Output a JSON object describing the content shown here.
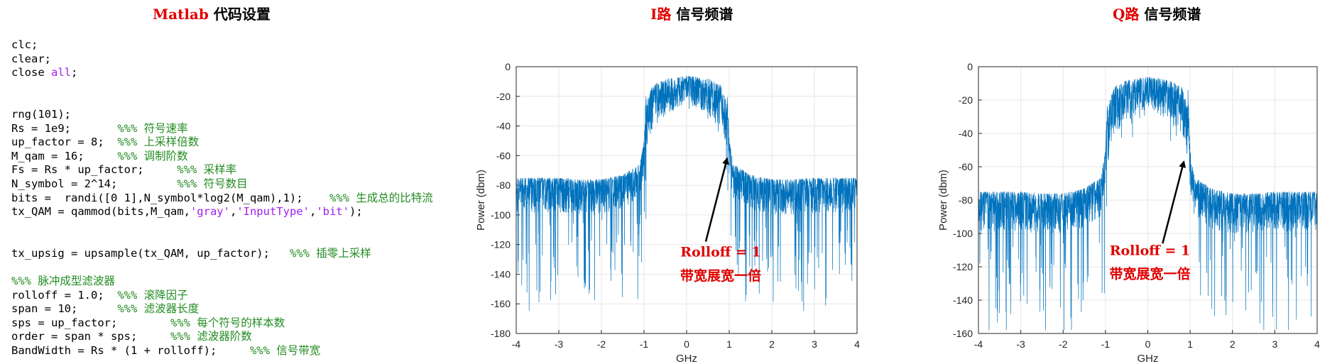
{
  "panels": {
    "code_title_prefix": "Matlab",
    "code_title_rest": " 代码设置",
    "i_title_prefix": "I路",
    "i_title_rest": " 信号频谱",
    "q_title_prefix": "Q路",
    "q_title_rest": " 信号频谱"
  },
  "code": {
    "lines": [
      [
        {
          "t": "clc;",
          "c": ""
        }
      ],
      [
        {
          "t": "clear;",
          "c": ""
        }
      ],
      [
        {
          "t": "close ",
          "c": ""
        },
        {
          "t": "all",
          "c": "kw"
        },
        {
          "t": ";",
          "c": ""
        }
      ],
      [],
      [],
      [
        {
          "t": "rng(101);",
          "c": ""
        }
      ],
      [
        {
          "t": "Rs = 1e9;       ",
          "c": ""
        },
        {
          "t": "%%% 符号速率",
          "c": "cm"
        }
      ],
      [
        {
          "t": "up_factor = 8;  ",
          "c": ""
        },
        {
          "t": "%%% 上采样倍数",
          "c": "cm"
        }
      ],
      [
        {
          "t": "M_qam = 16;     ",
          "c": ""
        },
        {
          "t": "%%% 调制阶数",
          "c": "cm"
        }
      ],
      [
        {
          "t": "Fs = Rs * up_factor;     ",
          "c": ""
        },
        {
          "t": "%%% 采样率",
          "c": "cm"
        }
      ],
      [
        {
          "t": "N_symbol = 2^14;         ",
          "c": ""
        },
        {
          "t": "%%% 符号数目",
          "c": "cm"
        }
      ],
      [
        {
          "t": "bits =  randi([0 1],N_symbol*log2(M_qam),1);    ",
          "c": ""
        },
        {
          "t": "%%% 生成总的比特流",
          "c": "cm"
        }
      ],
      [
        {
          "t": "tx_QAM = qammod(bits,M_qam,",
          "c": ""
        },
        {
          "t": "'gray'",
          "c": "str"
        },
        {
          "t": ",",
          "c": ""
        },
        {
          "t": "'InputType'",
          "c": "str"
        },
        {
          "t": ",",
          "c": ""
        },
        {
          "t": "'bit'",
          "c": "str"
        },
        {
          "t": ");",
          "c": ""
        }
      ],
      [],
      [],
      [
        {
          "t": "tx_upsig = upsample(tx_QAM, up_factor);   ",
          "c": ""
        },
        {
          "t": "%%% 插零上采样",
          "c": "cm"
        }
      ],
      [],
      [
        {
          "t": "%%% 脉冲成型滤波器",
          "c": "cm"
        }
      ],
      [
        {
          "t": "rolloff = 1.0;  ",
          "c": ""
        },
        {
          "t": "%%% 滚降因子",
          "c": "cm"
        }
      ],
      [
        {
          "t": "span = 10;      ",
          "c": ""
        },
        {
          "t": "%%% 滤波器长度",
          "c": "cm"
        }
      ],
      [
        {
          "t": "sps = up_factor;        ",
          "c": ""
        },
        {
          "t": "%%% 每个符号的样本数",
          "c": "cm"
        }
      ],
      [
        {
          "t": "order = span * sps;     ",
          "c": ""
        },
        {
          "t": "%%% 滤波器阶数",
          "c": "cm"
        }
      ],
      [
        {
          "t": "BandWidth = Rs * (1 + rolloff);     ",
          "c": ""
        },
        {
          "t": "%%% 信号带宽",
          "c": "cm"
        }
      ]
    ]
  },
  "chart_data": [
    {
      "type": "line",
      "xlabel": "GHz",
      "ylabel": "Power (dbm)",
      "xlim": [
        -4,
        4
      ],
      "ylim": [
        -180,
        0
      ],
      "xticks": [
        -4,
        -3,
        -2,
        -1,
        0,
        1,
        2,
        3,
        4
      ],
      "yticks": [
        0,
        -20,
        -40,
        -60,
        -80,
        -100,
        -120,
        -140,
        -160,
        -180
      ],
      "grid": true,
      "color": "#0072bd",
      "series": [
        {
          "x": [
            -4,
            -3.5,
            -3,
            -2.5,
            -2,
            -1.5,
            -1.1,
            -1,
            -0.95,
            -0.8,
            -0.5,
            0,
            0.5,
            0.8,
            0.95,
            1,
            1.1,
            1.5,
            2,
            2.5,
            3,
            3.5,
            4
          ],
          "y": [
            -87,
            -87,
            -87,
            -88,
            -88,
            -85,
            -78,
            -62,
            -25,
            -12,
            -8,
            -6,
            -8,
            -12,
            -25,
            -62,
            -78,
            -85,
            -88,
            -88,
            -87,
            -87,
            -87
          ]
        }
      ],
      "annotations": [
        {
          "text": "Rolloff = 1",
          "x": 0.8,
          "y": -128
        },
        {
          "text": "带宽展宽一倍",
          "x": 0.8,
          "y": -144
        }
      ],
      "arrow": {
        "from": [
          0.45,
          -118
        ],
        "to": [
          0.95,
          -62
        ]
      }
    },
    {
      "type": "line",
      "xlabel": "GHz",
      "ylabel": "Power (dbm)",
      "xlim": [
        -4,
        4
      ],
      "ylim": [
        -160,
        0
      ],
      "xticks": [
        -4,
        -3,
        -2,
        -1,
        0,
        1,
        2,
        3,
        4
      ],
      "yticks": [
        0,
        -20,
        -40,
        -60,
        -80,
        -100,
        -120,
        -140,
        -160
      ],
      "grid": true,
      "color": "#0072bd",
      "series": [
        {
          "x": [
            -4,
            -3.5,
            -3,
            -2.5,
            -2,
            -1.5,
            -1.1,
            -1,
            -0.95,
            -0.8,
            -0.5,
            0,
            0.5,
            0.8,
            0.95,
            1,
            1.1,
            1.5,
            2,
            2.5,
            3,
            3.5,
            4
          ],
          "y": [
            -87,
            -87,
            -87,
            -88,
            -88,
            -85,
            -78,
            -62,
            -25,
            -12,
            -8,
            -6,
            -8,
            -12,
            -25,
            -62,
            -78,
            -85,
            -88,
            -88,
            -87,
            -87,
            -87
          ]
        }
      ],
      "annotations": [
        {
          "text": "Rolloff = 1",
          "x": 0.05,
          "y": -113
        },
        {
          "text": "带宽展宽一倍",
          "x": 0.05,
          "y": -127
        }
      ],
      "arrow": {
        "from": [
          0.35,
          -106
        ],
        "to": [
          0.85,
          -57
        ]
      }
    }
  ]
}
